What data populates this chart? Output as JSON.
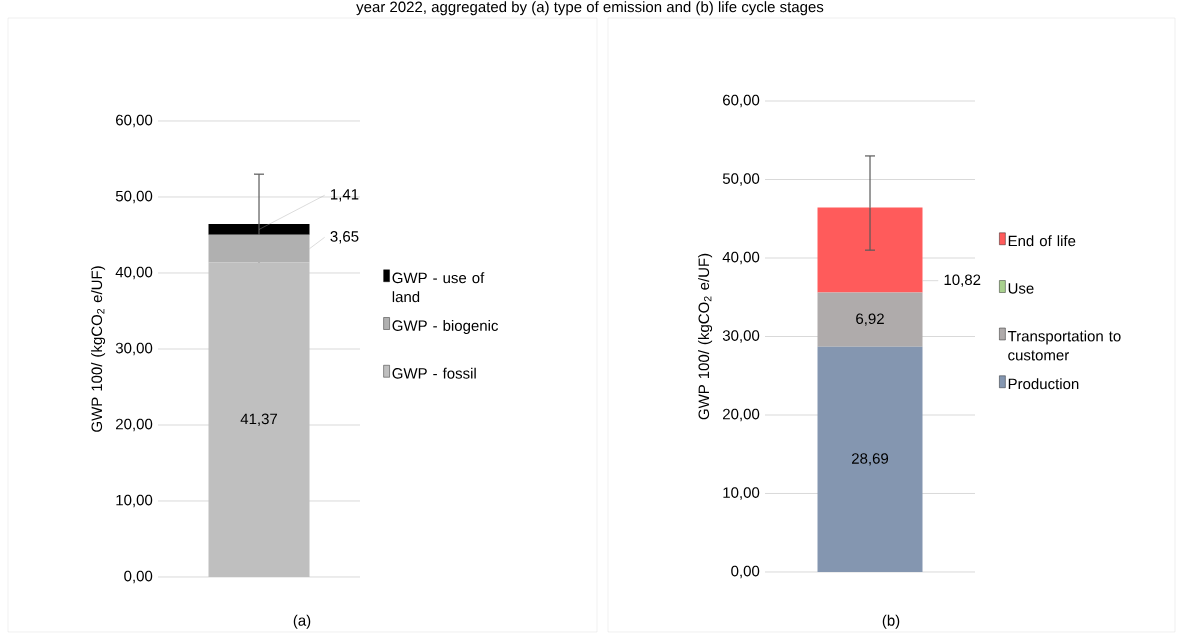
{
  "chart_data": [
    {
      "type": "bar",
      "stacked": true,
      "title": "year 2022, aggregated by (a) type of emission and (b) life cycle stages",
      "ylabel": "GWP 100/ (kgCO$_{2}$ e/UF)",
      "categories": [
        null
      ],
      "series": [
        {
          "name": "GWP - fossil",
          "color": "#bfbfbf",
          "values": [
            41.37
          ],
          "value_labels": [
            "41,37"
          ]
        },
        {
          "name": "GWP - biogenic",
          "color": "#b0b0b0",
          "values": [
            3.65
          ],
          "value_labels": [
            "3,65"
          ]
        },
        {
          "name": "GWP - use of land",
          "color": "#000000",
          "values": [
            1.41
          ],
          "value_labels": [
            "1,41"
          ],
          "errors": [
            [
              41,
              53
            ]
          ]
        }
      ],
      "ylim": [
        0,
        60
      ],
      "yticks": [
        {
          "value": 0,
          "label": "0,00"
        },
        {
          "value": 10,
          "label": "10,00"
        },
        {
          "value": 20,
          "label": "20,00"
        },
        {
          "value": 30,
          "label": "30,00"
        },
        {
          "value": 40,
          "label": "40,00"
        },
        {
          "value": 50,
          "label": "50,00"
        },
        {
          "value": 60,
          "label": "60,00"
        }
      ],
      "grid": "y",
      "legend": "right",
      "annotations": [
        "(a)"
      ]
    },
    {
      "type": "bar",
      "stacked": true,
      "ylabel": "GWP 100/ (kgCO$_{2}$ e/UF)",
      "categories": [
        null
      ],
      "series": [
        {
          "name": "Production",
          "color": "#8496b0",
          "values": [
            28.69
          ],
          "value_labels": [
            "28,69"
          ]
        },
        {
          "name": "Transportation to customer",
          "color": "#afabab",
          "values": [
            6.92
          ],
          "value_labels": [
            "6,92"
          ]
        },
        {
          "name": "Use",
          "color": "#a9d18e",
          "values": [
            0
          ],
          "value_labels": [
            null
          ]
        },
        {
          "name": "End of life",
          "color": "#ff5b5b",
          "values": [
            10.82
          ],
          "value_labels": [
            "10,82"
          ],
          "errors": [
            [
              41,
              53
            ]
          ]
        }
      ],
      "ylim": [
        0,
        60
      ],
      "yticks": [
        {
          "value": 0,
          "label": "0,00"
        },
        {
          "value": 10,
          "label": "10,00"
        },
        {
          "value": 20,
          "label": "20,00"
        },
        {
          "value": 30,
          "label": "30,00"
        },
        {
          "value": 40,
          "label": "40,00"
        },
        {
          "value": 50,
          "label": "50,00"
        },
        {
          "value": 60,
          "label": "60,00"
        }
      ],
      "grid": "y",
      "legend": "right",
      "annotations": [
        "(b)"
      ]
    }
  ]
}
